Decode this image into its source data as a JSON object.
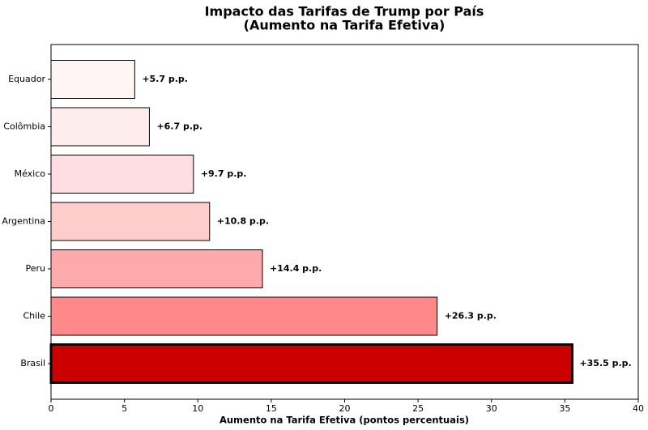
{
  "chart_data": {
    "type": "barh",
    "title": "Impacto das Tarifas de Trump por País",
    "subtitle": "(Aumento na Tarifa Efetiva)",
    "x_label": "Aumento na Tarifa Efetiva (pontos percentuais)",
    "categories": [
      "Equador",
      "Colômbia",
      "México",
      "Argentina",
      "Peru",
      "Chile",
      "Brasil"
    ],
    "values": [
      5.7,
      6.7,
      9.7,
      10.8,
      14.4,
      26.3,
      35.5
    ],
    "value_labels": [
      "+5.7 p.p.",
      "+6.7 p.p.",
      "+9.7 p.p.",
      "+10.8 p.p.",
      "+14.4 p.p.",
      "+26.3 p.p.",
      "+35.5 p.p."
    ],
    "colors": [
      "#fff5f5",
      "#ffeded",
      "#ffdde0",
      "#ffcccc",
      "#ffaaaa",
      "#ff8888",
      "#cc0000"
    ],
    "edge_widths": [
      1,
      1,
      1,
      1,
      1,
      1,
      3
    ],
    "xlim": [
      0,
      40
    ],
    "xticks": [
      0,
      5,
      10,
      15,
      20,
      25,
      30,
      35,
      40
    ],
    "grid": false
  }
}
